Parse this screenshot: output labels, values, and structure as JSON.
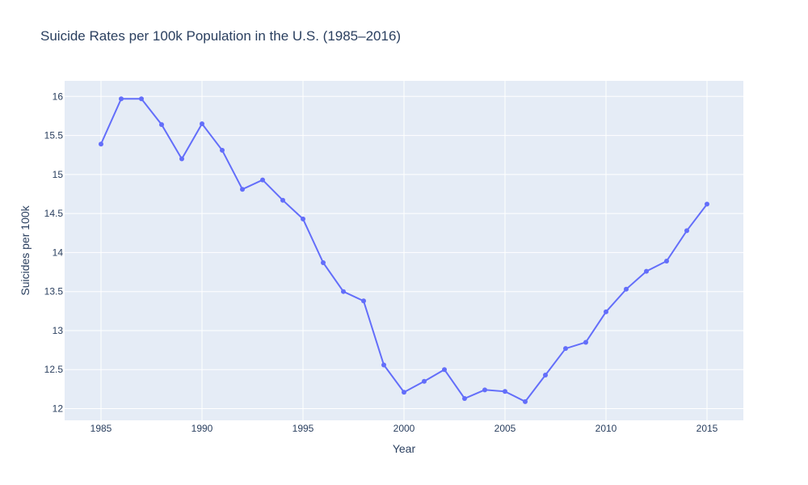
{
  "chart_data": {
    "type": "line",
    "title": "Suicide Rates per 100k Population in the U.S. (1985–2016)",
    "xlabel": "Year",
    "ylabel": "Suicides per 100k",
    "xlim": [
      1983.2,
      1986.8
    ],
    "ylim": [
      11.85,
      16.2
    ],
    "x_ticks": [
      1985,
      1990,
      1995,
      2000,
      2005,
      2010,
      2015
    ],
    "y_ticks": [
      12,
      12.5,
      13,
      13.5,
      14,
      14.5,
      15,
      15.5,
      16
    ],
    "grid": true,
    "legend": "none",
    "colors": {
      "line": "#636efa",
      "plot_bg": "#e5ecf6",
      "grid": "#ffffff",
      "text": "#2a3f5f"
    },
    "series": [
      {
        "x": [
          1985,
          1986,
          1987,
          1988,
          1989,
          1990,
          1991,
          1992,
          1993,
          1994,
          1995,
          1996,
          1997,
          1998,
          1999,
          2000,
          2001,
          2002,
          2003,
          2004,
          2005,
          2006,
          2007,
          2008,
          2009,
          2010,
          2011,
          2012,
          2013,
          2014,
          2015
        ],
        "y": [
          15.39,
          15.97,
          15.97,
          15.64,
          15.2,
          15.65,
          15.31,
          14.81,
          14.93,
          14.67,
          14.43,
          13.87,
          13.5,
          13.38,
          12.56,
          12.21,
          12.35,
          12.5,
          12.13,
          12.24,
          12.22,
          12.09,
          12.43,
          12.77,
          12.85,
          13.24,
          13.53,
          13.76,
          13.89,
          14.28,
          14.62
        ]
      }
    ]
  }
}
